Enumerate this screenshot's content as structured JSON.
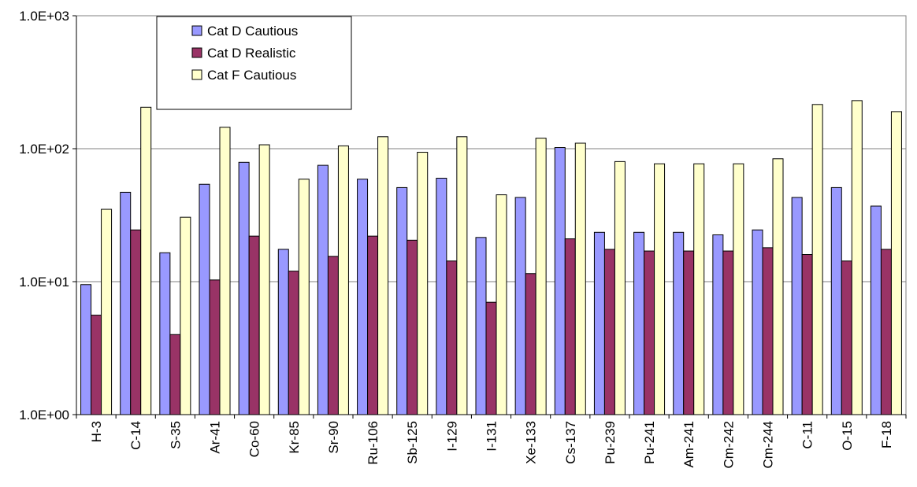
{
  "chart_data": {
    "type": "bar",
    "y_scale": "log",
    "ylim": [
      1,
      1000
    ],
    "yticks": [
      "1.0E+00",
      "1.0E+01",
      "1.0E+02",
      "1.0E+03"
    ],
    "grid": true,
    "legend_position": "top-left",
    "categories": [
      "H-3",
      "C-14",
      "S-35",
      "Ar-41",
      "Co-60",
      "Kr-85",
      "Sr-90",
      "Ru-106",
      "Sb-125",
      "I-129",
      "I-131",
      "Xe-133",
      "Cs-137",
      "Pu-239",
      "Pu-241",
      "Am-241",
      "Cm-242",
      "Cm-244",
      "C-11",
      "O-15",
      "F-18"
    ],
    "series": [
      {
        "name": "Cat D Cautious",
        "color": "#9999ff",
        "values": [
          9.5,
          47,
          16.5,
          54,
          79,
          17.5,
          75,
          59,
          51,
          60,
          21.5,
          43,
          102,
          23.5,
          23.5,
          23.5,
          22.5,
          24.5,
          43,
          51,
          37
        ]
      },
      {
        "name": "Cat D Realistic",
        "color": "#993366",
        "values": [
          5.6,
          24.5,
          4.0,
          10.3,
          22,
          12,
          15.5,
          22,
          20.5,
          14.3,
          7.0,
          11.5,
          21,
          17.5,
          17,
          17,
          17,
          18,
          16,
          14.3,
          17.5
        ]
      },
      {
        "name": "Cat F Cautious",
        "color": "#ffffcc",
        "values": [
          35,
          205,
          30.5,
          145,
          107,
          59,
          105,
          123,
          94,
          123,
          45,
          120,
          110,
          80,
          77,
          77,
          77,
          84,
          215,
          230,
          190
        ]
      }
    ]
  }
}
